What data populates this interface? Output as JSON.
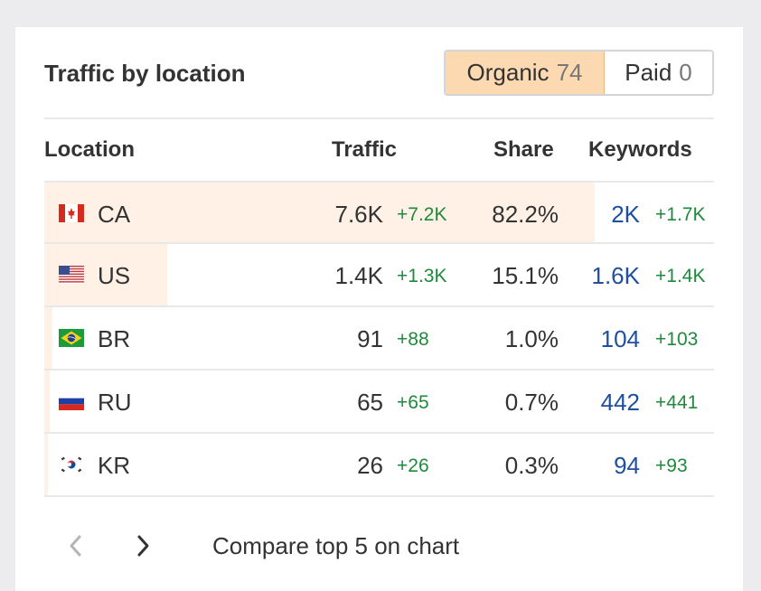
{
  "widget": {
    "title": "Traffic by location",
    "toggle": {
      "organic_label": "Organic",
      "organic_count": "74",
      "paid_label": "Paid",
      "paid_count": "0",
      "active": "organic"
    }
  },
  "table": {
    "headers": {
      "location": "Location",
      "traffic": "Traffic",
      "share": "Share",
      "keywords": "Keywords"
    },
    "rows": [
      {
        "flag": "canada-flag-icon",
        "location": "CA",
        "traffic": "7.6K",
        "traffic_delta": "+7.2K",
        "share": "82.2%",
        "share_value": 82.2,
        "keywords": "2K",
        "keywords_delta": "+1.7K"
      },
      {
        "flag": "usa-flag-icon",
        "location": "US",
        "traffic": "1.4K",
        "traffic_delta": "+1.3K",
        "share": "15.1%",
        "share_value": 15.1,
        "keywords": "1.6K",
        "keywords_delta": "+1.4K"
      },
      {
        "flag": "brazil-flag-icon",
        "location": "BR",
        "traffic": "91",
        "traffic_delta": "+88",
        "share": "1.0%",
        "share_value": 1.0,
        "keywords": "104",
        "keywords_delta": "+103"
      },
      {
        "flag": "russia-flag-icon",
        "location": "RU",
        "traffic": "65",
        "traffic_delta": "+65",
        "share": "0.7%",
        "share_value": 0.7,
        "keywords": "442",
        "keywords_delta": "+441"
      },
      {
        "flag": "south-korea-flag-icon",
        "location": "KR",
        "traffic": "26",
        "traffic_delta": "+26",
        "share": "0.3%",
        "share_value": 0.3,
        "keywords": "94",
        "keywords_delta": "+93"
      }
    ]
  },
  "footer": {
    "compare_label": "Compare top 5 on chart",
    "prev_icon": "chevron-left-icon",
    "next_icon": "chevron-right-icon"
  },
  "colors": {
    "background": "#ececee",
    "card": "#ffffff",
    "organic_active": "#fcd9b0",
    "share_bar": "#fff1e6",
    "positive_delta": "#1e8a3a",
    "keyword_link": "#1f4fa0"
  }
}
